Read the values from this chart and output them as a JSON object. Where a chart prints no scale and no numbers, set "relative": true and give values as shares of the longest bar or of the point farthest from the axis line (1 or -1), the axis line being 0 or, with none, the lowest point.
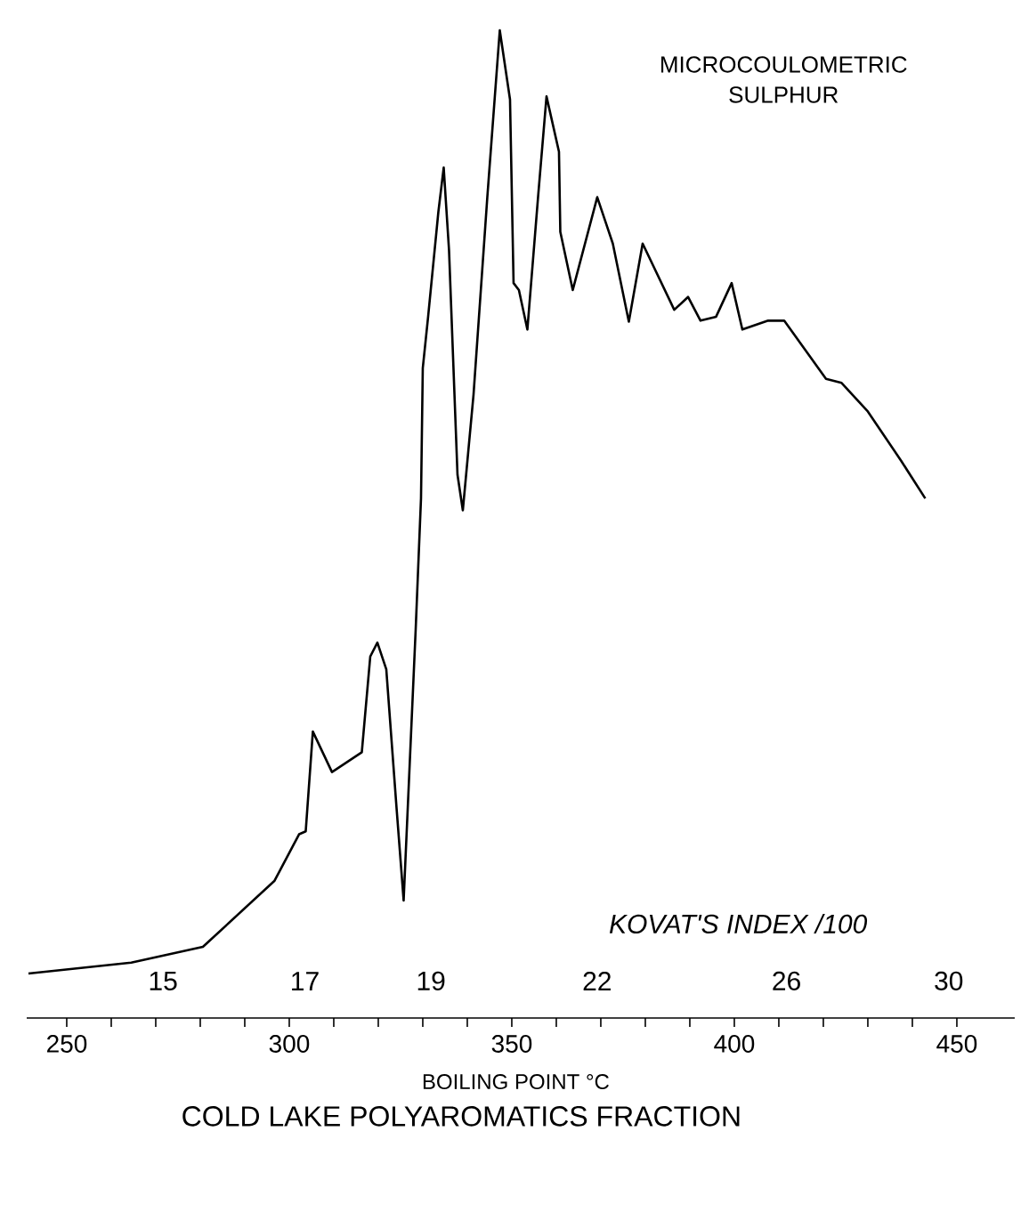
{
  "chart_data": {
    "type": "line",
    "relative": true,
    "title": "COLD LAKE POLYAROMATICS FRACTION",
    "xlabel": "BOILING POINT °C",
    "x2label": "KOVAT'S INDEX /100",
    "annotations": [
      "MICROCOULOMETRIC SULPHUR"
    ],
    "xlim": [
      241,
      463
    ],
    "xticks": [
      250,
      {
        "value": 260,
        "label": null
      },
      {
        "value": 270,
        "label": null
      },
      {
        "value": 280,
        "label": null
      },
      {
        "value": 290,
        "label": null
      },
      300,
      {
        "value": 310,
        "label": null
      },
      {
        "value": 320,
        "label": null
      },
      {
        "value": 330,
        "label": null
      },
      {
        "value": 340,
        "label": null
      },
      350,
      {
        "value": 360,
        "label": null
      },
      {
        "value": 370,
        "label": null
      },
      {
        "value": 380,
        "label": null
      },
      {
        "value": 390,
        "label": null
      },
      400,
      {
        "value": 410,
        "label": null
      },
      {
        "value": 420,
        "label": null
      },
      {
        "value": 430,
        "label": null
      },
      {
        "value": 440,
        "label": null
      },
      450
    ],
    "log": "x2",
    "x2lim": [
      13.3,
      31.8
    ],
    "x2ticks": [
      15,
      17,
      19,
      22,
      26,
      30
    ],
    "series": [
      {
        "color": "#000000",
        "line_style": "solid",
        "x": [
          241.4,
          264.5,
          280.6,
          296.7,
          302.2,
          303.7,
          305.3,
          309.6,
          316.3,
          318.2,
          319.8,
          321.8,
          324.1,
          325.7,
          328.4,
          329.6,
          330.0,
          331.2,
          333.5,
          334.7,
          335.9,
          337.8,
          339.0,
          341.4,
          344.5,
          347.3,
          349.6,
          350.4,
          351.6,
          353.5,
          355.9,
          357.8,
          360.6,
          360.9,
          363.7,
          369.2,
          372.7,
          376.3,
          379.4,
          386.5,
          389.6,
          392.4,
          395.9,
          399.4,
          401.8,
          407.6,
          411.2,
          420.6,
          424.1,
          430.0,
          437.5,
          442.9
        ],
        "values": [
          0.045,
          0.056,
          0.072,
          0.139,
          0.186,
          0.189,
          0.29,
          0.249,
          0.269,
          0.366,
          0.38,
          0.353,
          0.213,
          0.119,
          0.393,
          0.526,
          0.658,
          0.71,
          0.816,
          0.861,
          0.777,
          0.55,
          0.514,
          0.631,
          0.831,
          1.0,
          0.93,
          0.744,
          0.737,
          0.697,
          0.831,
          0.933,
          0.877,
          0.796,
          0.737,
          0.831,
          0.784,
          0.705,
          0.784,
          0.717,
          0.73,
          0.706,
          0.71,
          0.744,
          0.697,
          0.706,
          0.706,
          0.647,
          0.643,
          0.614,
          0.564,
          0.526
        ]
      }
    ]
  }
}
